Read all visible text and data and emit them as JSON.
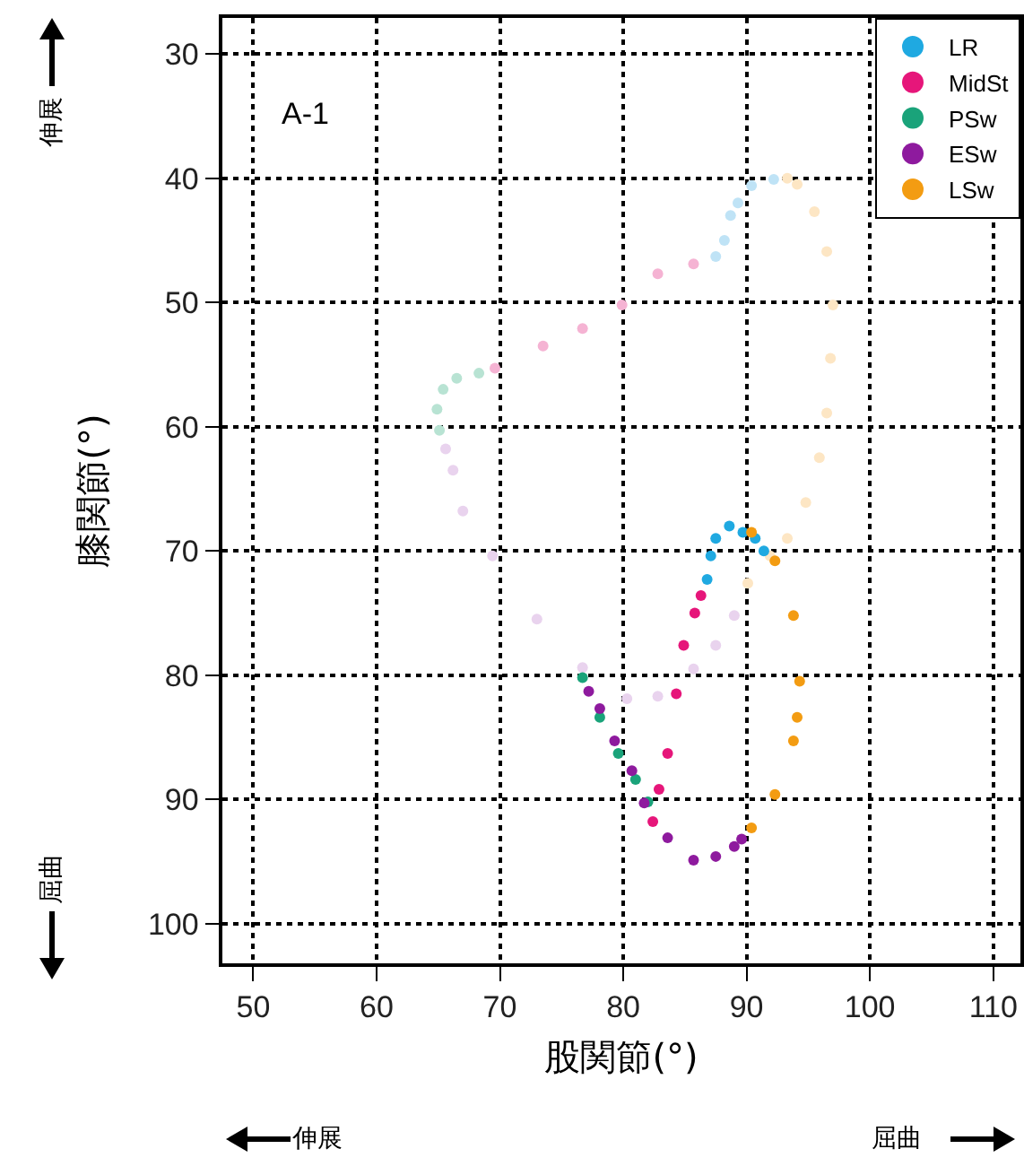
{
  "chart_data": {
    "type": "scatter",
    "xlabel": "股関節(°)",
    "ylabel": "膝関節(°)",
    "annotations": [
      "A-1",
      "伸展",
      "屈曲",
      "伸展",
      "屈曲"
    ],
    "xlim": [
      47.5,
      112.2
    ],
    "ylim": [
      103.2,
      27.1
    ],
    "xticks": [
      50,
      60,
      70,
      80,
      90,
      100,
      110
    ],
    "yticks": [
      30,
      40,
      50,
      60,
      70,
      80,
      90,
      100
    ],
    "grid": true,
    "legend": "top right",
    "marker": "circle",
    "series": [
      {
        "color": "#bfe3f6",
        "x": [
          87.5,
          88.2,
          88.7,
          89.3,
          90.4,
          92.2
        ],
        "values": [
          46.3,
          45,
          43,
          42,
          40.6,
          40.1
        ]
      },
      {
        "color": "#f5b3d3",
        "x": [
          69.6,
          73.5,
          76.7,
          79.9,
          82.8,
          85.7
        ],
        "values": [
          55.3,
          53.5,
          52.1,
          50.2,
          47.7,
          46.9
        ]
      },
      {
        "color": "#b8e3d3",
        "x": [
          65.1,
          64.9,
          65.4,
          66.5,
          68.3
        ],
        "values": [
          60.3,
          58.6,
          57.0,
          56.1,
          55.7
        ]
      },
      {
        "color": "#e9d3ee",
        "x": [
          65.6,
          66.2,
          67.0,
          69.4,
          73.0,
          76.7,
          80.3,
          82.8,
          85.7,
          87.5,
          89.0
        ],
        "values": [
          61.8,
          63.5,
          66.8,
          70.4,
          75.5,
          79.4,
          81.9,
          81.7,
          79.5,
          77.6,
          75.2
        ]
      },
      {
        "color": "#fde6c4",
        "x": [
          93.3,
          94.1,
          95.5,
          96.5,
          97.0,
          96.8,
          96.5,
          95.9,
          94.8,
          93.3,
          91.9,
          90.1
        ],
        "values": [
          40.0,
          40.5,
          42.7,
          45.9,
          50.2,
          54.5,
          58.9,
          62.5,
          66.1,
          69.0,
          70.4,
          72.6
        ]
      },
      {
        "name": "LR",
        "color": "#1fa9e1",
        "x": [
          86.8,
          87.1,
          87.5,
          88.6,
          89.7,
          90.7,
          91.4
        ],
        "values": [
          72.3,
          70.4,
          69.0,
          68.0,
          68.5,
          69.0,
          70.0
        ]
      },
      {
        "name": "MidSt",
        "color": "#e6167a",
        "x": [
          86.3,
          85.8,
          84.9,
          84.3,
          83.6,
          82.9,
          82.4
        ],
        "values": [
          73.6,
          75.0,
          77.6,
          81.5,
          86.3,
          89.2,
          91.8
        ]
      },
      {
        "name": "PSw",
        "color": "#1aa37a",
        "x": [
          76.7,
          78.1,
          79.6,
          81.0,
          82.0
        ],
        "values": [
          80.2,
          83.4,
          86.3,
          88.4,
          90.2
        ]
      },
      {
        "name": "ESw",
        "color": "#8e1a9e",
        "x": [
          77.2,
          78.1,
          79.3,
          80.7,
          81.7,
          83.6,
          85.7,
          87.5,
          89.0,
          89.6
        ],
        "values": [
          81.3,
          82.7,
          85.3,
          87.7,
          90.3,
          93.1,
          94.9,
          94.6,
          93.8,
          93.2
        ]
      },
      {
        "name": "LSw",
        "color": "#f39c12",
        "x": [
          90.4,
          92.3,
          93.8,
          94.3,
          94.1,
          93.8,
          92.3,
          90.4
        ],
        "values": [
          68.5,
          70.8,
          75.2,
          80.5,
          83.4,
          85.3,
          89.6,
          92.3
        ]
      }
    ]
  }
}
